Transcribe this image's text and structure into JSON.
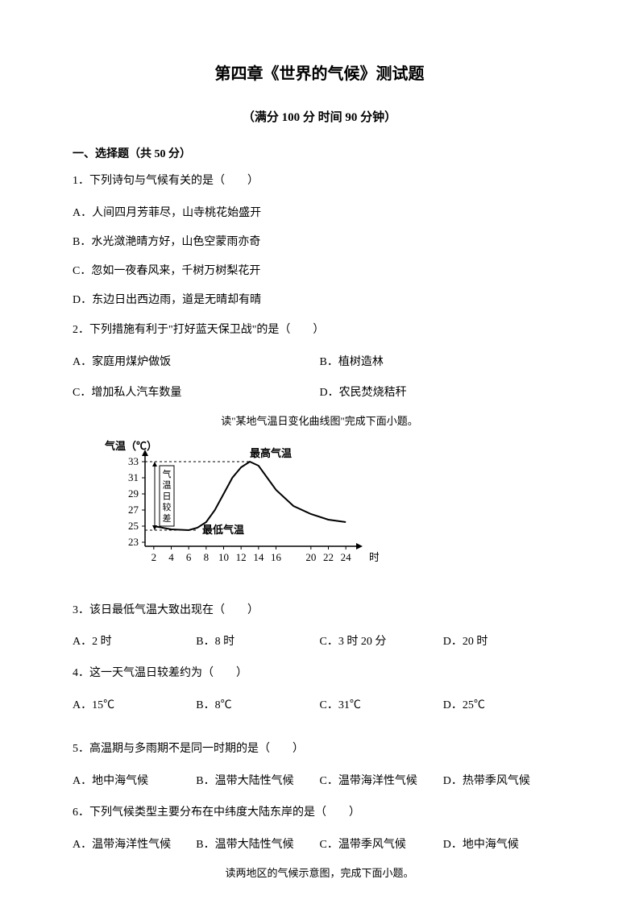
{
  "title": "第四章《世界的气候》测试题",
  "subtitle": "（满分 100 分  时间 90 分钟）",
  "section1": "一、选择题（共 50 分）",
  "q1": {
    "text": "1．下列诗句与气候有关的是（　　）",
    "a": "A．人间四月芳菲尽，山寺桃花始盛开",
    "b": "B．水光潋滟晴方好，山色空蒙雨亦奇",
    "c": "C．忽如一夜春风来，千树万树梨花开",
    "d": "D．东边日出西边雨，道是无晴却有晴"
  },
  "q2": {
    "text": "2．下列措施有利于\"打好蓝天保卫战\"的是（　　）",
    "a": "A．家庭用煤炉做饭",
    "b": "B．植树造林",
    "c": "C．增加私人汽车数量",
    "d": "D．农民焚烧秸秆"
  },
  "instruction1": "读\"某地气温日变化曲线图\"完成下面小题。",
  "chart": {
    "ylabel": "气温（℃）",
    "max_label": "最高气温",
    "min_label": "最低气温",
    "range_label": "气温日较差",
    "x_unit": "时",
    "y_ticks": [
      23,
      25,
      27,
      29,
      31,
      33
    ],
    "x_ticks": [
      2,
      4,
      6,
      8,
      10,
      12,
      14,
      16,
      20,
      22,
      24
    ],
    "curve_points": [
      {
        "x": 2,
        "y": 25
      },
      {
        "x": 4,
        "y": 24.6
      },
      {
        "x": 6,
        "y": 24.5
      },
      {
        "x": 7,
        "y": 24.8
      },
      {
        "x": 8,
        "y": 25.5
      },
      {
        "x": 9,
        "y": 27
      },
      {
        "x": 10,
        "y": 29
      },
      {
        "x": 11,
        "y": 31
      },
      {
        "x": 12,
        "y": 32.3
      },
      {
        "x": 13,
        "y": 33
      },
      {
        "x": 14,
        "y": 32.5
      },
      {
        "x": 15,
        "y": 31
      },
      {
        "x": 16,
        "y": 29.5
      },
      {
        "x": 18,
        "y": 27.5
      },
      {
        "x": 20,
        "y": 26.5
      },
      {
        "x": 22,
        "y": 25.8
      },
      {
        "x": 24,
        "y": 25.5
      }
    ],
    "line_color": "#000000",
    "line_width": 2,
    "bg_color": "#ffffff",
    "font_size": 13
  },
  "q3": {
    "text": "3．该日最低气温大致出现在（　　）",
    "a": "A．2 时",
    "b": "B．8 时",
    "c": "C．3 时 20 分",
    "d": "D．20 时"
  },
  "q4": {
    "text": "4．这一天气温日较差约为（　　）",
    "a": "A．15℃",
    "b": "B．8℃",
    "c": "C．31℃",
    "d": "D．25℃"
  },
  "q5": {
    "text": "5．高温期与多雨期不是同一时期的是（　　）",
    "a": "A．地中海气候",
    "b": "B．温带大陆性气候",
    "c": "C．温带海洋性气候",
    "d": "D．热带季风气候"
  },
  "q6": {
    "text": "6．下列气候类型主要分布在中纬度大陆东岸的是（　　）",
    "a": "A．温带海洋性气候",
    "b": "B．温带大陆性气候",
    "c": "C．温带季风气候",
    "d": "D．地中海气候"
  },
  "instruction2": "读两地区的气候示意图，完成下面小题。"
}
